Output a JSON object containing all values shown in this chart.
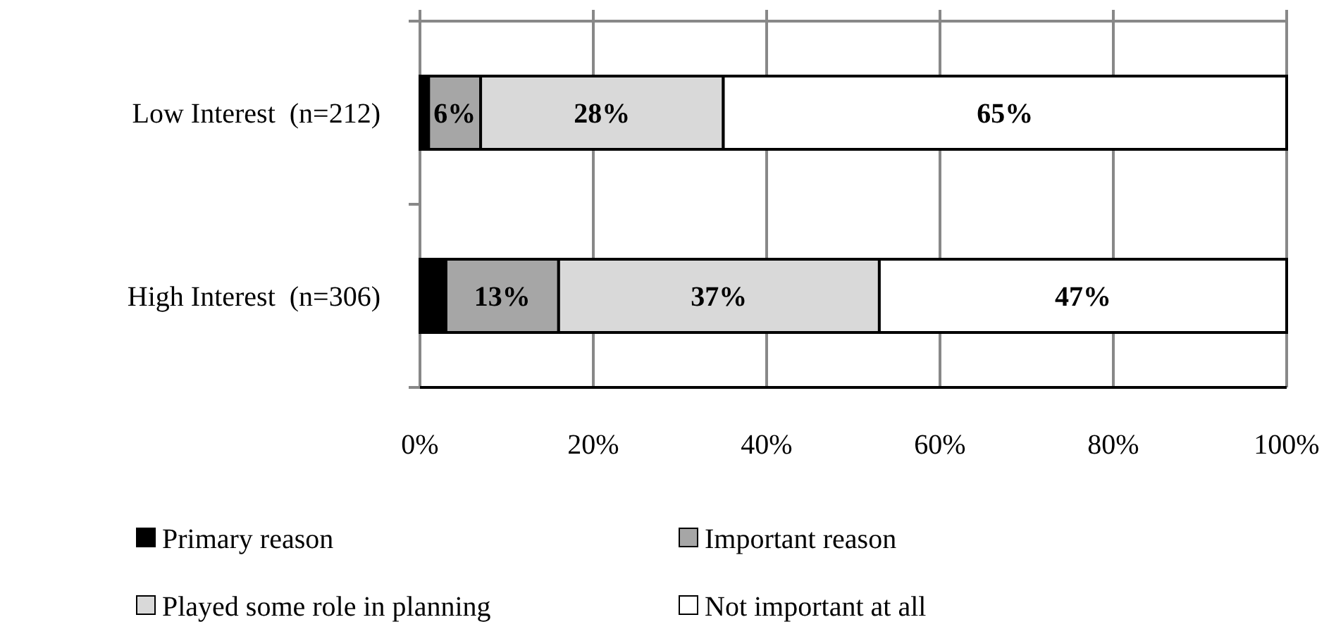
{
  "chart_data": {
    "type": "bar",
    "orientation": "horizontal",
    "stacked": true,
    "categories": [
      "Low Interest  (n=212)",
      "High Interest  (n=306)"
    ],
    "series": [
      {
        "name": "Primary reason",
        "color": "#000000",
        "values": [
          1,
          3
        ],
        "value_labels": [
          null,
          null
        ]
      },
      {
        "name": "Important reason",
        "color": "#a6a6a6",
        "values": [
          6,
          13
        ],
        "value_labels": [
          "6%",
          "13%"
        ]
      },
      {
        "name": "Played some role in planning",
        "color": "#d9d9d9",
        "values": [
          28,
          37
        ],
        "value_labels": [
          "28%",
          "37%"
        ]
      },
      {
        "name": "Not important at all",
        "color": "#ffffff",
        "values": [
          65,
          47
        ],
        "value_labels": [
          "65%",
          "47%"
        ]
      }
    ],
    "xlim": [
      0,
      100
    ],
    "xticks": [
      {
        "value": 0,
        "label": "0%"
      },
      {
        "value": 20,
        "label": "20%"
      },
      {
        "value": 40,
        "label": "40%"
      },
      {
        "value": 60,
        "label": "60%"
      },
      {
        "value": 80,
        "label": "80%"
      },
      {
        "value": 100,
        "label": "100%"
      }
    ],
    "grid": "x",
    "legend": "bottom"
  }
}
